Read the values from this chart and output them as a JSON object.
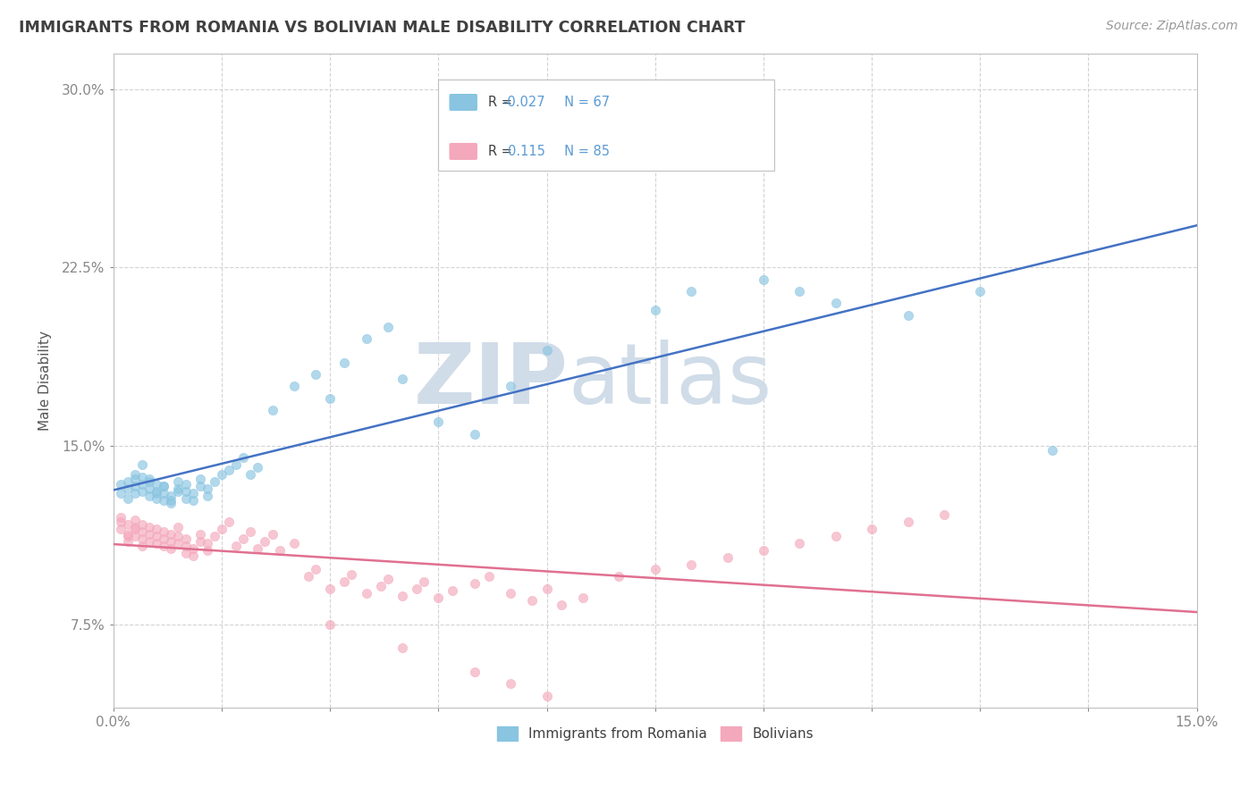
{
  "title": "IMMIGRANTS FROM ROMANIA VS BOLIVIAN MALE DISABILITY CORRELATION CHART",
  "source": "Source: ZipAtlas.com",
  "ylabel": "Male Disability",
  "xlim": [
    0.0,
    0.15
  ],
  "ylim": [
    0.04,
    0.315
  ],
  "color_blue": "#89c4e1",
  "color_pink": "#f4a8bc",
  "color_blue_line": "#4472c4",
  "color_pink_line": "#e07090",
  "background_color": "#ffffff",
  "grid_color": "#c8c8c8",
  "title_color": "#404040",
  "axis_label_color": "#5b9bd5",
  "watermark_color": "#d0dce8",
  "legend_box_color": "#e8f0f8"
}
